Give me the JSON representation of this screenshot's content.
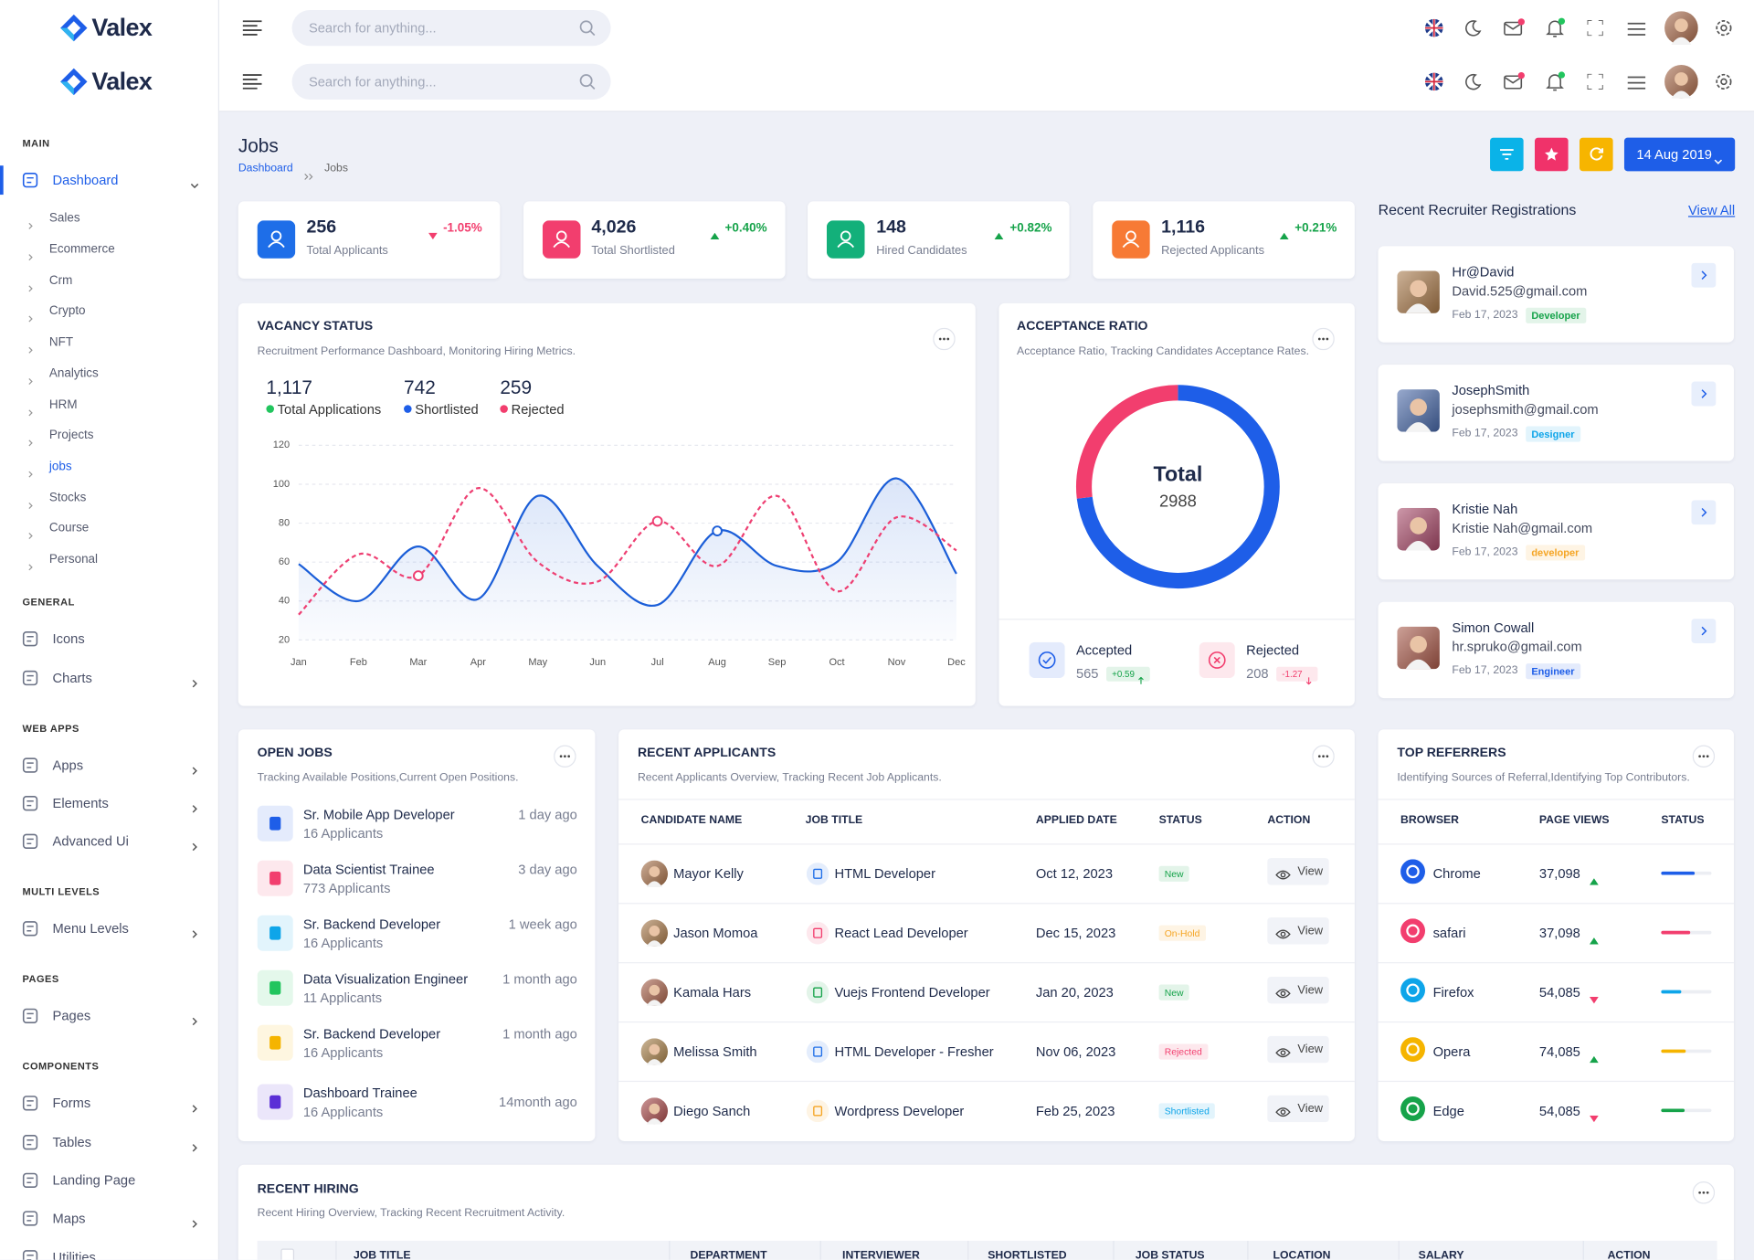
{
  "header": {
    "logo": "Valex",
    "search_placeholder": "Search for anything..."
  },
  "sidebar": {
    "sections": [
      {
        "title": "MAIN",
        "items": [
          {
            "label": "Dashboard",
            "expandable": true,
            "children": [
              "Sales",
              "Ecommerce",
              "Crm",
              "Crypto",
              "NFT",
              "Analytics",
              "HRM",
              "Projects",
              "jobs",
              "Stocks",
              "Course",
              "Personal"
            ]
          }
        ]
      },
      {
        "title": "GENERAL",
        "items": [
          {
            "label": "Icons"
          },
          {
            "label": "Charts",
            "expandable": true
          }
        ]
      },
      {
        "title": "WEB APPS",
        "items": [
          {
            "label": "Apps",
            "expandable": true
          },
          {
            "label": "Elements",
            "expandable": true
          },
          {
            "label": "Advanced Ui",
            "expandable": true
          }
        ]
      },
      {
        "title": "MULTI LEVELS",
        "items": [
          {
            "label": "Menu Levels",
            "expandable": true
          }
        ]
      },
      {
        "title": "PAGES",
        "items": [
          {
            "label": "Pages",
            "expandable": true
          }
        ]
      },
      {
        "title": "COMPONENTS",
        "items": [
          {
            "label": "Forms",
            "expandable": true
          },
          {
            "label": "Tables",
            "expandable": true
          },
          {
            "label": "Landing Page"
          },
          {
            "label": "Maps",
            "expandable": true
          },
          {
            "label": "Utilities"
          }
        ]
      }
    ]
  },
  "page": {
    "title": "Jobs",
    "breadcrumb": [
      "Dashboard",
      "Jobs"
    ],
    "date": "14 Aug 2019"
  },
  "stats": [
    {
      "value": "256",
      "change": "-1.05%",
      "label": "Total Applicants",
      "trend": "down",
      "color": "#1e6ee8"
    },
    {
      "value": "4,026",
      "change": "+0.40%",
      "label": "Total Shortlisted",
      "trend": "up",
      "color": "#f23e6e"
    },
    {
      "value": "148",
      "change": "+0.82%",
      "label": "Hired Candidates",
      "trend": "up",
      "color": "#13b07a"
    },
    {
      "value": "1,116",
      "change": "+0.21%",
      "label": "Rejected Applicants",
      "trend": "up",
      "color": "#f77a35"
    }
  ],
  "vacancy": {
    "title": "VACANCY STATUS",
    "subtitle": "Recruitment Performance Dashboard, Monitoring Hiring Metrics.",
    "summary": [
      {
        "value": "1,117",
        "label": "Total Applications",
        "color": "#22c55e"
      },
      {
        "value": "742",
        "label": "Shortlisted",
        "color": "#1e5ee8"
      },
      {
        "value": "259",
        "label": "Rejected",
        "color": "#f23e6e"
      }
    ]
  },
  "chart_data": {
    "type": "line",
    "categories": [
      "Jan",
      "Feb",
      "Mar",
      "Apr",
      "May",
      "Jun",
      "Jul",
      "Aug",
      "Sep",
      "Oct",
      "Nov",
      "Dec"
    ],
    "series": [
      {
        "color": "#1b5ed8",
        "area": true,
        "values": [
          59,
          40,
          68,
          41,
          94,
          58,
          38,
          76,
          58,
          60,
          103,
          54
        ],
        "markers": [
          7
        ]
      },
      {
        "color": "#ee3f72",
        "dashed": true,
        "values": [
          33,
          64,
          53,
          98,
          60,
          50,
          81,
          58,
          94,
          45,
          83,
          66
        ],
        "markers": [
          2,
          6
        ]
      }
    ],
    "ylim": [
      20,
      120
    ],
    "yticks": [
      20,
      40,
      60,
      80,
      100,
      120
    ],
    "grid": true
  },
  "acceptance": {
    "title": "ACCEPTANCE RATIO",
    "subtitle": "Acceptance Ratio, Tracking Candidates Acceptance Rates.",
    "total_label": "Total",
    "total": "2988",
    "items": [
      {
        "label": "Accepted",
        "value": 565,
        "change": "+0.59",
        "color": "#1e5ee8"
      },
      {
        "label": "Rejected",
        "value": 208,
        "change": "-1.27",
        "color": "#f23e6e"
      }
    ]
  },
  "recruiters": {
    "title": "Recent Recruiter Registrations",
    "link": "View All",
    "items": [
      {
        "name": "Hr@David",
        "email": "David.525@gmail.com",
        "date": "Feb 17, 2023",
        "role": "Developer",
        "color": "#16a34a"
      },
      {
        "name": "JosephSmith",
        "email": "josephsmith@gmail.com",
        "date": "Feb 17, 2023",
        "role": "Designer",
        "color": "#0ea5e9"
      },
      {
        "name": "Kristie Nah",
        "email": "Kristie Nah@gmail.com",
        "date": "Feb 17, 2023",
        "role": "developer",
        "color": "#f5a524"
      },
      {
        "name": "Simon Cowall",
        "email": "hr.spruko@gmail.com",
        "date": "Feb 17, 2023",
        "role": "Engineer",
        "color": "#1e5ee8"
      }
    ]
  },
  "open_jobs": {
    "title": "OPEN JOBS",
    "subtitle": "Tracking Available Positions,Current Open Positions.",
    "items": [
      {
        "title": "Sr. Mobile App Developer",
        "applicants": "16 Applicants",
        "time": "1 day ago",
        "color": "#1e5ee8"
      },
      {
        "title": "Data Scientist Trainee",
        "applicants": "773 Applicants",
        "time": "3 day ago",
        "color": "#f23e6e"
      },
      {
        "title": "Sr. Backend Developer",
        "applicants": "16 Applicants",
        "time": "1 week ago",
        "color": "#0ea5e9"
      },
      {
        "title": "Data Visualization Engineer",
        "applicants": "11 Applicants",
        "time": "1 month ago",
        "color": "#22c55e"
      },
      {
        "title": "Sr. Backend Developer",
        "applicants": "16 Applicants",
        "time": "1 month ago",
        "color": "#f5b400"
      },
      {
        "title": "Dashboard Trainee",
        "applicants": "16 Applicants",
        "time": "14month ago",
        "color": "#5b2fd6"
      }
    ]
  },
  "applicants": {
    "title": "RECENT APPLICANTS",
    "subtitle": "Recent Applicants Overview, Tracking Recent Job Applicants.",
    "columns": [
      "CANDIDATE NAME",
      "JOB TITLE",
      "APPLIED DATE",
      "STATUS",
      "ACTION"
    ],
    "rows": [
      [
        "Mayor Kelly",
        "HTML Developer",
        "Oct 12, 2023",
        "New",
        "View"
      ],
      [
        "Jason Momoa",
        "React Lead Developer",
        "Dec 15, 2023",
        "On-Hold",
        "View"
      ],
      [
        "Kamala Hars",
        "Vuejs Frontend Developer",
        "Jan 20, 2023",
        "New",
        "View"
      ],
      [
        "Melissa Smith",
        "HTML Developer - Fresher",
        "Nov 06, 2023",
        "Rejected",
        "View"
      ],
      [
        "Diego Sanch",
        "Wordpress Developer",
        "Feb 25, 2023",
        "Shortlisted",
        "View"
      ]
    ],
    "status_colors": [
      "#16a34a",
      "#f5a524",
      "#16a34a",
      "#f23e6e",
      "#0ea5e9"
    ],
    "job_icon_colors": [
      "#1e6ee8",
      "#f23e6e",
      "#16a34a",
      "#1e6ee8",
      "#f5a524"
    ]
  },
  "referrers": {
    "title": "TOP REFERRERS",
    "subtitle": "Identifying Sources of Referral,Identifying Top Contributors.",
    "columns": [
      "BROWSER",
      "PAGE VIEWS",
      "STATUS"
    ],
    "rows": [
      {
        "browser": "Chrome",
        "views": "37,098",
        "trend": "up",
        "progress": 67,
        "color": "#1e5ee8"
      },
      {
        "browser": "safari",
        "views": "37,098",
        "trend": "up",
        "progress": 58,
        "color": "#f23e6e"
      },
      {
        "browser": "Firefox",
        "views": "54,085",
        "trend": "down",
        "progress": 40,
        "color": "#0ea5e9"
      },
      {
        "browser": "Opera",
        "views": "74,085",
        "trend": "up",
        "progress": 49,
        "color": "#f5b400"
      },
      {
        "browser": "Edge",
        "views": "54,085",
        "trend": "down",
        "progress": 47,
        "color": "#16a34a"
      }
    ]
  },
  "hiring": {
    "title": "RECENT HIRING",
    "subtitle": "Recent Hiring Overview, Tracking Recent Recruitment Activity.",
    "columns": [
      "JOB TITLE",
      "DEPARTMENT",
      "INTERVIEWER",
      "SHORTLISTED",
      "JOB STATUS",
      "LOCATION",
      "SALARY",
      "ACTION"
    ]
  }
}
